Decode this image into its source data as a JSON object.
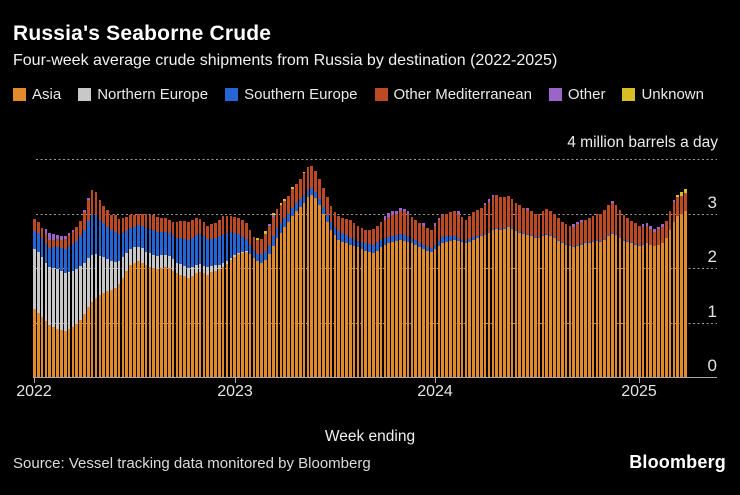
{
  "header": {
    "title": "Russia's Seaborne Crude",
    "subtitle": "Four-week average crude shipments from Russia by destination (2022-2025)"
  },
  "axis_note": "4 million barrels a day",
  "x_axis": {
    "label": "Week ending",
    "years": [
      "2022",
      "2023",
      "2024",
      "2025"
    ],
    "tick_weeks": [
      0,
      52,
      104,
      157
    ]
  },
  "y_axis": {
    "tick_labels": [
      "3",
      "2",
      "1",
      "0"
    ],
    "tick_values": [
      3,
      2,
      1,
      0
    ],
    "gridline_values": [
      4,
      3,
      2,
      1
    ],
    "max": 4
  },
  "source": "Source: Vessel tracking data monitored by Bloomberg",
  "brand": "Bloomberg",
  "colors": {
    "background": "#000000",
    "grid": "#9a9a9a",
    "axis": "#a8a8a8",
    "text": "#ffffff"
  },
  "legend": [
    {
      "label": "Asia",
      "color": "#E28B2D"
    },
    {
      "label": "Northern Europe",
      "color": "#C8C8C8"
    },
    {
      "label": "Southern Europe",
      "color": "#2565D4"
    },
    {
      "label": "Other Mediterranean",
      "color": "#BC4A25"
    },
    {
      "label": "Other",
      "color": "#9B64C8"
    },
    {
      "label": "Unknown",
      "color": "#D8BE26"
    }
  ],
  "chart_data": {
    "type": "bar",
    "stacked": true,
    "interval": "weekly",
    "x_start": "2022-01",
    "x_end": "2025-04",
    "n_points": 170,
    "unit": "million barrels a day",
    "ylim": [
      0,
      4
    ],
    "grid": true,
    "legend_position": "top",
    "series": [
      {
        "name": "Asia",
        "color": "#E28B2D",
        "values": [
          1.25,
          1.18,
          1.1,
          1.02,
          0.96,
          0.92,
          0.88,
          0.86,
          0.85,
          0.88,
          0.92,
          0.98,
          1.05,
          1.15,
          1.28,
          1.38,
          1.45,
          1.5,
          1.55,
          1.58,
          1.6,
          1.63,
          1.7,
          1.82,
          1.95,
          2.05,
          2.1,
          2.12,
          2.1,
          2.05,
          2.02,
          2.0,
          1.98,
          2.0,
          2.02,
          2.0,
          1.95,
          1.9,
          1.88,
          1.85,
          1.82,
          1.85,
          1.9,
          1.92,
          1.9,
          1.88,
          1.92,
          1.95,
          1.98,
          2.02,
          2.08,
          2.15,
          2.2,
          2.25,
          2.28,
          2.3,
          2.25,
          2.18,
          2.12,
          2.1,
          2.15,
          2.25,
          2.4,
          2.55,
          2.65,
          2.75,
          2.85,
          2.95,
          3.05,
          3.12,
          3.2,
          3.3,
          3.34,
          3.28,
          3.15,
          3.0,
          2.85,
          2.7,
          2.6,
          2.52,
          2.48,
          2.45,
          2.42,
          2.4,
          2.38,
          2.35,
          2.32,
          2.3,
          2.28,
          2.32,
          2.38,
          2.42,
          2.45,
          2.48,
          2.5,
          2.52,
          2.5,
          2.48,
          2.45,
          2.42,
          2.38,
          2.35,
          2.32,
          2.3,
          2.35,
          2.4,
          2.45,
          2.48,
          2.5,
          2.52,
          2.5,
          2.48,
          2.45,
          2.48,
          2.52,
          2.55,
          2.58,
          2.6,
          2.65,
          2.7,
          2.72,
          2.7,
          2.72,
          2.75,
          2.72,
          2.68,
          2.65,
          2.62,
          2.6,
          2.58,
          2.55,
          2.55,
          2.58,
          2.6,
          2.58,
          2.55,
          2.5,
          2.45,
          2.42,
          2.4,
          2.38,
          2.4,
          2.42,
          2.45,
          2.45,
          2.48,
          2.5,
          2.48,
          2.52,
          2.58,
          2.62,
          2.6,
          2.55,
          2.5,
          2.48,
          2.45,
          2.42,
          2.4,
          2.42,
          2.45,
          2.42,
          2.4,
          2.42,
          2.45,
          2.55,
          2.7,
          2.85,
          2.95,
          3.0,
          3.05
        ]
      },
      {
        "name": "Northern Europe",
        "color": "#C8C8C8",
        "values": [
          1.1,
          1.12,
          1.1,
          1.08,
          1.05,
          1.08,
          1.1,
          1.08,
          1.05,
          1.05,
          1.02,
          1.0,
          0.98,
          0.95,
          0.9,
          0.85,
          0.8,
          0.72,
          0.65,
          0.58,
          0.52,
          0.48,
          0.42,
          0.38,
          0.33,
          0.3,
          0.28,
          0.27,
          0.26,
          0.25,
          0.25,
          0.24,
          0.24,
          0.23,
          0.22,
          0.22,
          0.21,
          0.2,
          0.2,
          0.19,
          0.18,
          0.17,
          0.16,
          0.15,
          0.14,
          0.13,
          0.12,
          0.1,
          0.08,
          0.07,
          0.05,
          0.04,
          0.03,
          0.02,
          0.01,
          0.01,
          0,
          0,
          0,
          0,
          0,
          0,
          0,
          0,
          0,
          0,
          0,
          0,
          0,
          0,
          0,
          0,
          0,
          0,
          0,
          0,
          0,
          0,
          0,
          0,
          0,
          0,
          0,
          0,
          0,
          0,
          0,
          0,
          0,
          0,
          0,
          0,
          0,
          0,
          0,
          0,
          0,
          0,
          0,
          0,
          0,
          0,
          0,
          0,
          0,
          0,
          0,
          0,
          0,
          0,
          0,
          0,
          0,
          0,
          0,
          0,
          0,
          0,
          0,
          0,
          0,
          0,
          0,
          0,
          0,
          0,
          0,
          0,
          0,
          0,
          0,
          0,
          0,
          0,
          0,
          0,
          0,
          0,
          0,
          0,
          0,
          0,
          0,
          0,
          0,
          0,
          0,
          0,
          0,
          0,
          0,
          0,
          0,
          0,
          0,
          0,
          0,
          0,
          0,
          0,
          0,
          0,
          0,
          0,
          0,
          0,
          0,
          0,
          0,
          0
        ]
      },
      {
        "name": "Southern Europe",
        "color": "#2565D4",
        "values": [
          0.33,
          0.35,
          0.36,
          0.35,
          0.36,
          0.38,
          0.4,
          0.42,
          0.45,
          0.48,
          0.5,
          0.52,
          0.55,
          0.6,
          0.68,
          0.75,
          0.72,
          0.66,
          0.62,
          0.6,
          0.58,
          0.56,
          0.5,
          0.45,
          0.4,
          0.38,
          0.38,
          0.4,
          0.42,
          0.44,
          0.45,
          0.45,
          0.44,
          0.43,
          0.42,
          0.42,
          0.44,
          0.46,
          0.48,
          0.5,
          0.52,
          0.54,
          0.55,
          0.55,
          0.54,
          0.52,
          0.5,
          0.5,
          0.52,
          0.54,
          0.52,
          0.48,
          0.42,
          0.35,
          0.28,
          0.22,
          0.18,
          0.15,
          0.14,
          0.15,
          0.16,
          0.17,
          0.18,
          0.18,
          0.17,
          0.16,
          0.15,
          0.15,
          0.14,
          0.14,
          0.14,
          0.13,
          0.13,
          0.12,
          0.12,
          0.12,
          0.13,
          0.14,
          0.15,
          0.16,
          0.16,
          0.15,
          0.14,
          0.13,
          0.12,
          0.12,
          0.13,
          0.14,
          0.15,
          0.15,
          0.14,
          0.13,
          0.12,
          0.11,
          0.1,
          0.1,
          0.1,
          0.1,
          0.09,
          0.09,
          0.08,
          0.08,
          0.07,
          0.07,
          0.08,
          0.1,
          0.12,
          0.1,
          0.08,
          0.06,
          0.05,
          0.04,
          0.04,
          0.05,
          0.05,
          0.04,
          0.03,
          0.03,
          0.02,
          0.02,
          0.02,
          0.02,
          0.02,
          0.02,
          0.02,
          0.02,
          0.02,
          0.02,
          0.02,
          0.02,
          0.02,
          0.02,
          0.02,
          0.02,
          0.02,
          0.02,
          0.02,
          0.02,
          0.02,
          0.02,
          0.02,
          0.02,
          0.02,
          0.02,
          0.02,
          0.02,
          0.02,
          0.02,
          0.02,
          0.02,
          0.02,
          0.02,
          0.02,
          0.02,
          0.02,
          0.02,
          0.02,
          0.02,
          0.02,
          0.02,
          0.01,
          0.01,
          0.01,
          0.01,
          0,
          0,
          0,
          0,
          0,
          0
        ]
      },
      {
        "name": "Other Mediterranean",
        "color": "#BC4A25",
        "values": [
          0.22,
          0.2,
          0.18,
          0.17,
          0.15,
          0.14,
          0.15,
          0.16,
          0.18,
          0.2,
          0.22,
          0.25,
          0.28,
          0.32,
          0.38,
          0.45,
          0.42,
          0.36,
          0.32,
          0.3,
          0.28,
          0.3,
          0.28,
          0.26,
          0.25,
          0.24,
          0.22,
          0.2,
          0.22,
          0.25,
          0.26,
          0.28,
          0.27,
          0.26,
          0.25,
          0.24,
          0.25,
          0.28,
          0.3,
          0.32,
          0.33,
          0.32,
          0.3,
          0.28,
          0.26,
          0.25,
          0.26,
          0.28,
          0.3,
          0.32,
          0.3,
          0.28,
          0.28,
          0.3,
          0.32,
          0.3,
          0.26,
          0.24,
          0.25,
          0.28,
          0.32,
          0.35,
          0.36,
          0.35,
          0.33,
          0.32,
          0.33,
          0.35,
          0.36,
          0.38,
          0.4,
          0.42,
          0.4,
          0.38,
          0.36,
          0.34,
          0.32,
          0.3,
          0.28,
          0.27,
          0.28,
          0.3,
          0.32,
          0.3,
          0.28,
          0.26,
          0.25,
          0.26,
          0.28,
          0.3,
          0.32,
          0.34,
          0.36,
          0.38,
          0.4,
          0.42,
          0.44,
          0.42,
          0.4,
          0.38,
          0.36,
          0.35,
          0.34,
          0.32,
          0.35,
          0.38,
          0.4,
          0.42,
          0.44,
          0.46,
          0.45,
          0.42,
          0.4,
          0.42,
          0.45,
          0.48,
          0.5,
          0.52,
          0.55,
          0.58,
          0.6,
          0.58,
          0.56,
          0.55,
          0.52,
          0.5,
          0.48,
          0.46,
          0.45,
          0.44,
          0.42,
          0.42,
          0.44,
          0.46,
          0.45,
          0.42,
          0.4,
          0.38,
          0.36,
          0.35,
          0.36,
          0.38,
          0.4,
          0.42,
          0.44,
          0.46,
          0.48,
          0.5,
          0.52,
          0.55,
          0.56,
          0.54,
          0.5,
          0.46,
          0.42,
          0.4,
          0.38,
          0.35,
          0.32,
          0.3,
          0.28,
          0.26,
          0.28,
          0.3,
          0.32,
          0.34,
          0.36,
          0.35,
          0.33,
          0.32
        ]
      },
      {
        "name": "Other",
        "color": "#9B64C8",
        "values": [
          0,
          0,
          0,
          0.1,
          0.12,
          0.1,
          0.08,
          0.06,
          0.05,
          0.04,
          0.03,
          0,
          0,
          0.05,
          0.04,
          0,
          0,
          0,
          0,
          0,
          0,
          0,
          0,
          0,
          0,
          0,
          0,
          0,
          0,
          0,
          0,
          0,
          0,
          0,
          0,
          0,
          0,
          0,
          0,
          0,
          0,
          0,
          0,
          0,
          0,
          0,
          0,
          0,
          0,
          0,
          0,
          0,
          0,
          0,
          0,
          0,
          0,
          0,
          0,
          0,
          0,
          0.03,
          0.03,
          0,
          0,
          0,
          0,
          0,
          0,
          0,
          0,
          0,
          0,
          0,
          0,
          0,
          0,
          0,
          0,
          0,
          0,
          0,
          0,
          0,
          0,
          0,
          0,
          0,
          0,
          0,
          0,
          0.06,
          0.08,
          0.07,
          0.05,
          0.06,
          0.05,
          0.04,
          0,
          0,
          0,
          0.04,
          0,
          0,
          0.05,
          0.04,
          0.03,
          0,
          0,
          0,
          0.04,
          0,
          0,
          0,
          0,
          0,
          0,
          0.04,
          0.05,
          0.04,
          0,
          0,
          0,
          0,
          0,
          0,
          0,
          0,
          0.03,
          0,
          0,
          0,
          0,
          0,
          0,
          0,
          0,
          0,
          0,
          0,
          0.04,
          0.05,
          0.04,
          0,
          0,
          0,
          0,
          0,
          0,
          0,
          0.03,
          0,
          0,
          0,
          0,
          0,
          0,
          0,
          0.04,
          0.05,
          0.06,
          0.05,
          0.04,
          0.05,
          0,
          0,
          0.03,
          0,
          0,
          0
        ]
      },
      {
        "name": "Unknown",
        "color": "#D8BE26",
        "values": [
          0,
          0,
          0,
          0,
          0,
          0,
          0,
          0,
          0,
          0,
          0,
          0,
          0,
          0,
          0,
          0,
          0,
          0,
          0,
          0,
          0,
          0,
          0,
          0,
          0,
          0,
          0,
          0,
          0,
          0,
          0,
          0,
          0,
          0,
          0,
          0,
          0,
          0,
          0,
          0,
          0,
          0,
          0,
          0,
          0,
          0,
          0,
          0,
          0,
          0,
          0,
          0,
          0,
          0,
          0,
          0,
          0,
          0,
          0.04,
          0,
          0.05,
          0,
          0.04,
          0,
          0.05,
          0.03,
          0,
          0.04,
          0,
          0,
          0.03,
          0,
          0,
          0,
          0,
          0,
          0,
          0,
          0,
          0,
          0,
          0,
          0,
          0,
          0,
          0,
          0,
          0,
          0,
          0,
          0,
          0,
          0,
          0,
          0,
          0,
          0,
          0,
          0,
          0,
          0,
          0,
          0,
          0,
          0,
          0,
          0,
          0,
          0,
          0,
          0,
          0,
          0,
          0,
          0,
          0,
          0,
          0,
          0,
          0,
          0,
          0,
          0,
          0,
          0,
          0,
          0,
          0,
          0,
          0,
          0,
          0,
          0,
          0,
          0,
          0,
          0,
          0,
          0,
          0,
          0,
          0,
          0,
          0,
          0,
          0,
          0,
          0,
          0,
          0,
          0,
          0,
          0,
          0,
          0,
          0,
          0,
          0,
          0,
          0,
          0,
          0,
          0,
          0,
          0,
          0,
          0,
          0.04,
          0.06,
          0.08
        ]
      }
    ]
  }
}
